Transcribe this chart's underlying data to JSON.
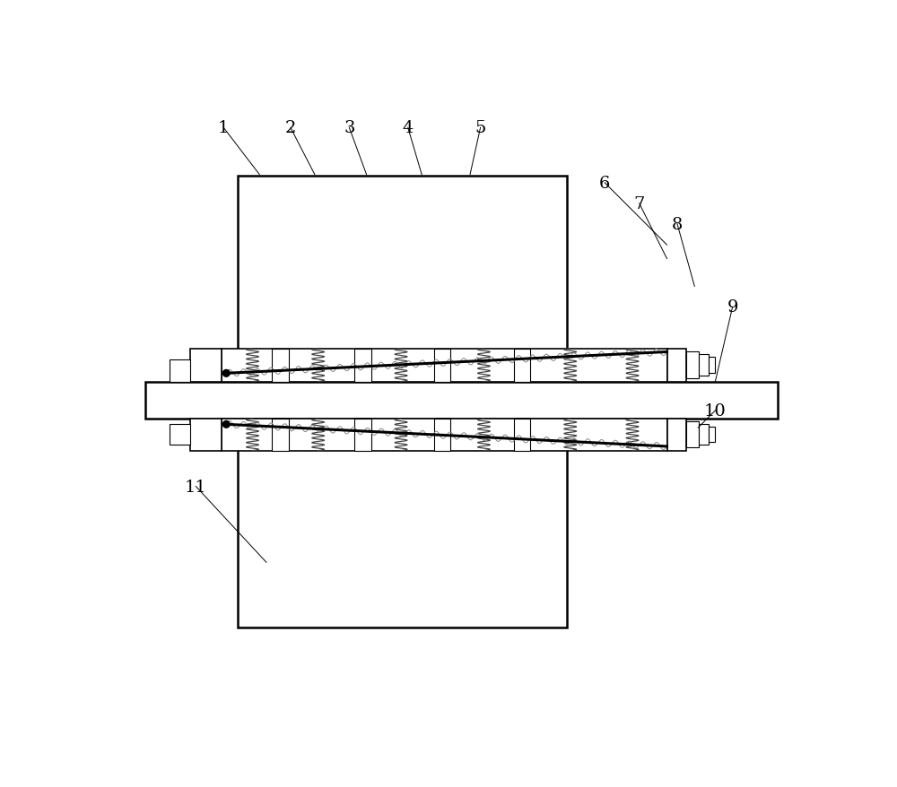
{
  "bg_color": "#ffffff",
  "lc": "#000000",
  "lw_thick": 1.8,
  "lw_med": 1.2,
  "lw_thin": 0.8,
  "lw_spring": 0.9
}
